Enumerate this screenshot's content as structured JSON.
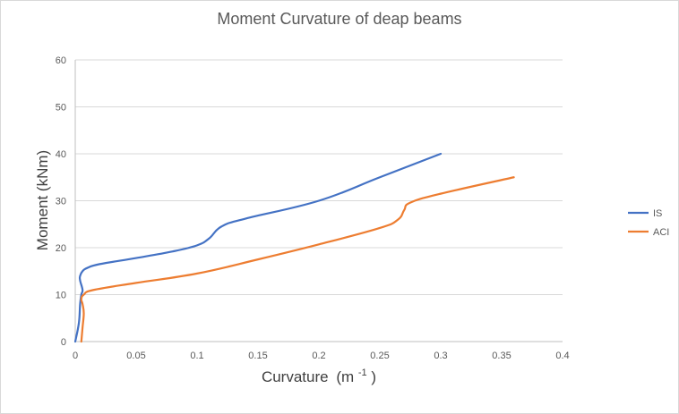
{
  "chart_data": {
    "type": "line",
    "title": "Moment Curvature of deap beams",
    "xlabel": "Curvature",
    "xlabel_unit": "(m",
    "xlabel_sup": "-1",
    "xlabel_close": ")",
    "ylabel": "Moment (kNm)",
    "xlim": [
      0,
      0.4
    ],
    "ylim": [
      0,
      60
    ],
    "xticks": [
      0,
      0.05,
      0.1,
      0.15,
      0.2,
      0.25,
      0.3,
      0.35,
      0.4
    ],
    "xtick_labels": [
      "0",
      "0.05",
      "0.1",
      "0.15",
      "0.2",
      "0.25",
      "0.3",
      "0.35",
      "0.4"
    ],
    "yticks": [
      0,
      10,
      20,
      30,
      40,
      50,
      60
    ],
    "ytick_labels": [
      "0",
      "10",
      "20",
      "30",
      "40",
      "50",
      "60"
    ],
    "grid": "horizontal",
    "legend_position": "right",
    "series": [
      {
        "name": "IS",
        "color": "#4472c4",
        "x": [
          0,
          0.003,
          0.004,
          0.005,
          0.006,
          0.004,
          0.004,
          0.006,
          0.01,
          0.02,
          0.05,
          0.08,
          0.1,
          0.11,
          0.12,
          0.14,
          0.2,
          0.25,
          0.3
        ],
        "y": [
          0,
          4,
          8,
          10,
          11,
          13,
          14,
          15,
          15.7,
          16.5,
          17.8,
          19.2,
          20.5,
          22,
          24.5,
          26.2,
          30,
          35,
          40
        ]
      },
      {
        "name": "ACI",
        "color": "#ed7d31",
        "x": [
          0.005,
          0.006,
          0.007,
          0.006,
          0.005,
          0.007,
          0.015,
          0.05,
          0.1,
          0.15,
          0.2,
          0.25,
          0.265,
          0.27,
          0.275,
          0.3,
          0.36
        ],
        "y": [
          0,
          3,
          6,
          8,
          9,
          10,
          11,
          12.5,
          14.5,
          17.5,
          20.7,
          24.2,
          26,
          28,
          29.6,
          31.5,
          35
        ]
      }
    ]
  }
}
